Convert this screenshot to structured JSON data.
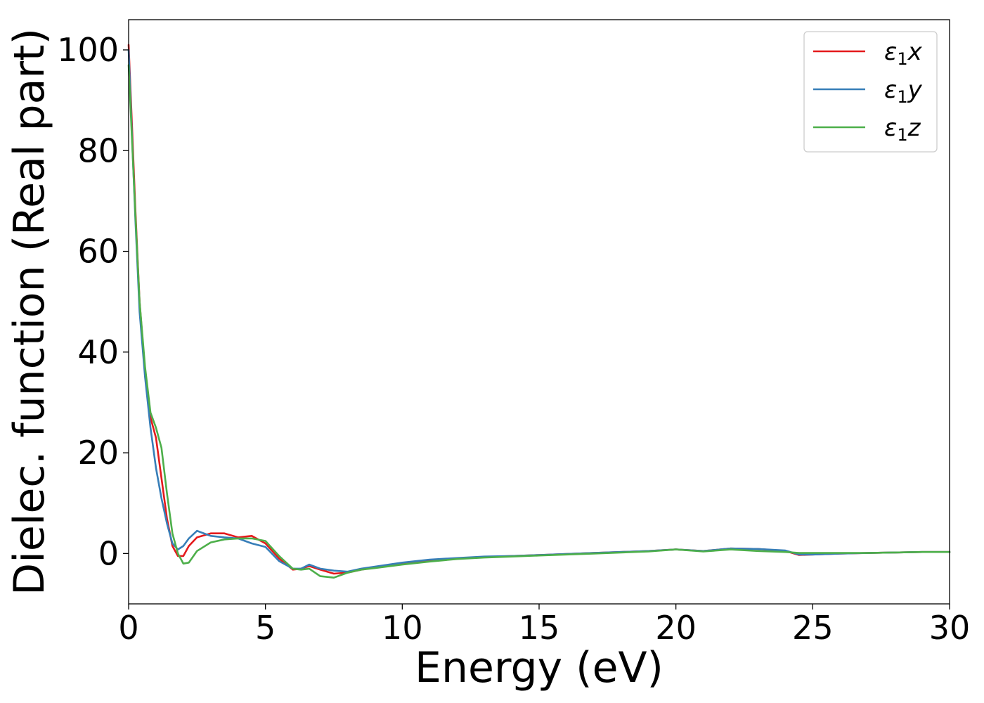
{
  "chart_data": {
    "type": "line",
    "title": "",
    "xlabel": "Energy (eV)",
    "ylabel": "Dielec. function (Real part)",
    "xlim": [
      0,
      30
    ],
    "ylim": [
      -10,
      106
    ],
    "xticks": [
      0,
      5,
      10,
      15,
      20,
      25,
      30
    ],
    "yticks": [
      0,
      20,
      40,
      60,
      80,
      100
    ],
    "grid": false,
    "legend_position": "top-right",
    "series": [
      {
        "name": "ε1x",
        "legend": {
          "symbol": "ε",
          "sub": "1",
          "var": "x"
        },
        "color": "#e41a1c",
        "x": [
          0.0,
          0.1,
          0.25,
          0.4,
          0.6,
          0.8,
          1.0,
          1.2,
          1.4,
          1.6,
          1.8,
          2.0,
          2.2,
          2.5,
          3.0,
          3.5,
          4.0,
          4.5,
          5.0,
          5.5,
          6.0,
          6.3,
          6.6,
          7.0,
          7.5,
          8.0,
          8.5,
          9.0,
          10.0,
          11.0,
          12.0,
          13.0,
          14.0,
          15.0,
          16.0,
          17.0,
          18.0,
          19.0,
          20.0,
          21.0,
          22.0,
          23.0,
          24.0,
          24.5,
          25.0,
          26.0,
          27.0,
          28.0,
          29.0,
          30.0
        ],
        "y": [
          101.0,
          88.0,
          68.0,
          50.0,
          36.0,
          27.0,
          23.0,
          15.0,
          7.0,
          1.5,
          -0.5,
          -0.5,
          1.5,
          3.2,
          4.0,
          4.0,
          3.2,
          3.5,
          2.0,
          -1.0,
          -3.2,
          -3.0,
          -2.5,
          -3.2,
          -4.0,
          -3.8,
          -3.2,
          -2.8,
          -2.0,
          -1.4,
          -1.0,
          -0.7,
          -0.5,
          -0.3,
          -0.1,
          0.1,
          0.3,
          0.5,
          0.8,
          0.5,
          1.0,
          0.9,
          0.5,
          -0.3,
          -0.2,
          0.0,
          0.1,
          0.2,
          0.3,
          0.3
        ]
      },
      {
        "name": "ε1y",
        "legend": {
          "symbol": "ε",
          "sub": "1",
          "var": "y"
        },
        "color": "#377eb8",
        "x": [
          0.0,
          0.1,
          0.25,
          0.4,
          0.6,
          0.8,
          1.0,
          1.2,
          1.4,
          1.6,
          1.8,
          2.0,
          2.2,
          2.5,
          3.0,
          3.5,
          4.0,
          4.5,
          5.0,
          5.5,
          6.0,
          6.3,
          6.6,
          7.0,
          7.5,
          8.0,
          8.5,
          9.0,
          10.0,
          11.0,
          12.0,
          13.0,
          14.0,
          15.0,
          16.0,
          17.0,
          18.0,
          19.0,
          20.0,
          21.0,
          22.0,
          23.0,
          24.0,
          24.5,
          25.0,
          26.0,
          27.0,
          28.0,
          29.0,
          30.0
        ],
        "y": [
          100.0,
          86.0,
          66.0,
          48.0,
          35.0,
          25.0,
          17.0,
          11.0,
          6.0,
          2.0,
          0.8,
          1.5,
          3.0,
          4.5,
          3.5,
          3.2,
          3.0,
          2.0,
          1.3,
          -1.5,
          -3.0,
          -3.0,
          -2.2,
          -3.0,
          -3.4,
          -3.6,
          -3.0,
          -2.6,
          -1.8,
          -1.2,
          -0.9,
          -0.6,
          -0.5,
          -0.3,
          -0.1,
          0.1,
          0.3,
          0.5,
          0.8,
          0.5,
          1.0,
          0.9,
          0.6,
          -0.2,
          -0.2,
          0.0,
          0.1,
          0.2,
          0.3,
          0.3
        ]
      },
      {
        "name": "ε1z",
        "legend": {
          "symbol": "ε",
          "sub": "1",
          "var": "z"
        },
        "color": "#4daf4a",
        "x": [
          0.0,
          0.1,
          0.25,
          0.4,
          0.6,
          0.8,
          1.0,
          1.2,
          1.4,
          1.6,
          1.8,
          2.0,
          2.2,
          2.5,
          3.0,
          3.5,
          4.0,
          4.5,
          5.0,
          5.5,
          6.0,
          6.3,
          6.6,
          7.0,
          7.5,
          8.0,
          8.5,
          9.0,
          10.0,
          11.0,
          12.0,
          13.0,
          14.0,
          15.0,
          16.0,
          17.0,
          18.0,
          19.0,
          20.0,
          21.0,
          22.0,
          23.0,
          24.0,
          24.5,
          25.0,
          26.0,
          27.0,
          28.0,
          29.0,
          30.0
        ],
        "y": [
          97.0,
          85.0,
          67.0,
          50.0,
          37.0,
          28.0,
          25.0,
          21.0,
          12.0,
          4.0,
          0.0,
          -2.0,
          -1.8,
          0.5,
          2.2,
          2.8,
          3.0,
          3.0,
          2.5,
          -0.5,
          -3.0,
          -3.2,
          -3.0,
          -4.5,
          -4.8,
          -3.8,
          -3.2,
          -2.9,
          -2.2,
          -1.6,
          -1.1,
          -0.8,
          -0.6,
          -0.4,
          -0.2,
          0.0,
          0.2,
          0.4,
          0.8,
          0.4,
          0.8,
          0.5,
          0.3,
          0.1,
          0.1,
          0.1,
          0.1,
          0.2,
          0.3,
          0.3
        ]
      }
    ]
  }
}
